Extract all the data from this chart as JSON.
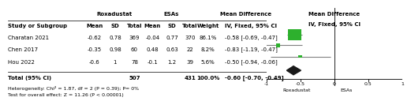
{
  "studies": [
    "Charatan 2021",
    "Chen 2017",
    "Hou 2022"
  ],
  "rox_mean": [
    "-0.62",
    "-0.35",
    "-0.6"
  ],
  "rox_sd": [
    "0.78",
    "0.98",
    "1"
  ],
  "rox_total": [
    "369",
    "60",
    "78"
  ],
  "esa_mean": [
    "-0.04",
    "0.48",
    "-0.1"
  ],
  "esa_sd": [
    "0.77",
    "0.63",
    "1.2"
  ],
  "esa_total": [
    "370",
    "22",
    "39"
  ],
  "weight": [
    "86.1%",
    "8.2%",
    "5.6%"
  ],
  "md": [
    -0.58,
    -0.83,
    -0.5
  ],
  "ci_lo": [
    -0.69,
    -1.19,
    -0.94
  ],
  "ci_hi": [
    -0.47,
    -0.47,
    -0.06
  ],
  "md_str": [
    "-0.58 [-0.69, -0.47]",
    "-0.83 [-1.19, -0.47]",
    "-0.50 [-0.94, -0.06]"
  ],
  "total_rox": "507",
  "total_esa": "431",
  "total_md": -0.6,
  "total_ci_lo": -0.7,
  "total_ci_hi": -0.49,
  "total_md_str": "-0.60 [-0.70, -0.49]",
  "heterogeneity": "Heterogeneity: Chi² = 1.87, df = 2 (P = 0.39); P= 0%",
  "overall_test": "Test for overall effect: Z = 11.26 (P < 0.00001)",
  "axis_min": -1,
  "axis_max": 1,
  "axis_ticks": [
    -1,
    -0.5,
    0,
    0.5,
    1
  ],
  "col_header_rox": "Roxadustat",
  "col_header_esa": "ESAs",
  "col_header_md": "Mean Difference",
  "col_subheader": "IV, Fixed, 95% CI",
  "study_label": "Study or Subgroup",
  "mean_label": "Mean",
  "sd_label": "SD",
  "total_label": "Total",
  "weight_label": "Weight",
  "md_label": "IV, Fixed, 95% CI",
  "diamond_color": "#1a1a1a",
  "box_color": "#2db02d",
  "line_color": "#808080",
  "xlabel_left": "Roxadustat",
  "xlabel_right": "ESAs",
  "total_label_text": "Total (95% CI)",
  "weights_num": [
    86.1,
    8.2,
    5.6
  ]
}
